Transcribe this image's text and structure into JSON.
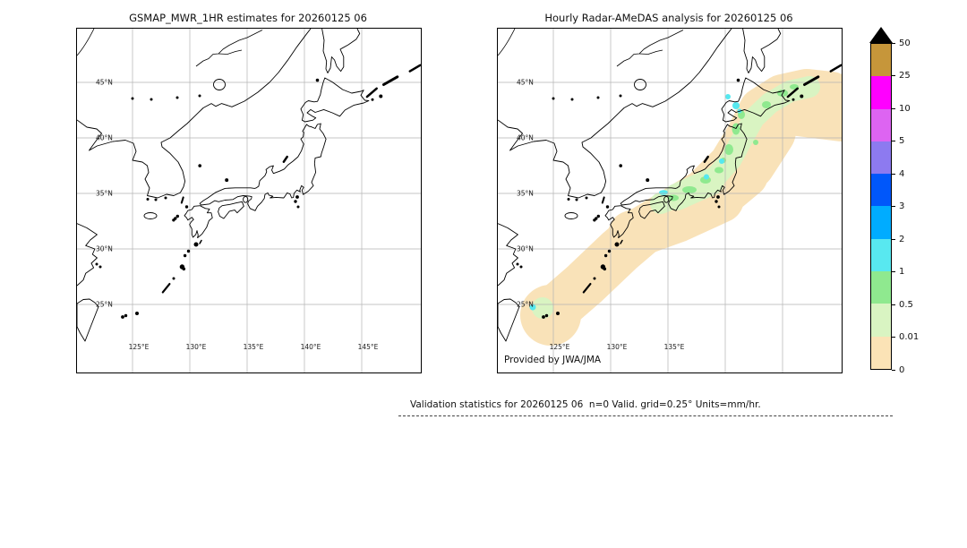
{
  "figure": {
    "background": "#ffffff"
  },
  "panels": [
    {
      "title": "GSMAP_MWR_1HR estimates for 20260125 06",
      "lat_labels": [
        "45°N",
        "40°N",
        "35°N",
        "30°N",
        "25°N"
      ],
      "lon_labels": [
        "125°E",
        "130°E",
        "135°E",
        "140°E",
        "145°E"
      ],
      "has_precip_overlay": false,
      "credit": ""
    },
    {
      "title": "Hourly Radar-AMeDAS analysis for 20260125 06",
      "lat_labels": [
        "45°N",
        "40°N",
        "35°N",
        "30°N",
        "25°N"
      ],
      "lon_labels": [
        "125°E",
        "130°E",
        "135°E"
      ],
      "has_precip_overlay": true,
      "credit": "Provided by JWA/JMA"
    }
  ],
  "colorbar": {
    "levels_top_to_bottom": [
      "50",
      "25",
      "10",
      "5",
      "4",
      "3",
      "2",
      "1",
      "0.5",
      "0.01",
      "0"
    ],
    "segment_colors_top_to_bottom": [
      "#c6963a",
      "#ff00ff",
      "#dd64f2",
      "#8d7af0",
      "#0057fa",
      "#00acff",
      "#58e8f0",
      "#8fe98f",
      "#d9f4c2",
      "#fbe3b6"
    ],
    "overflow_color": "#000000"
  },
  "caption": "Validation statistics for 20260125 06  n=0 Valid. grid=0.25° Units=mm/hr.",
  "chart_data": [
    {
      "type": "heatmap",
      "title": "GSMAP_MWR_1HR estimates for 20260125 06",
      "x_ticks": [
        "125°E",
        "130°E",
        "135°E",
        "140°E",
        "145°E"
      ],
      "y_ticks": [
        "45°N",
        "40°N",
        "35°N",
        "30°N",
        "25°N"
      ],
      "lon_range_deg_e": [
        120,
        150
      ],
      "lat_range_deg_n": [
        19,
        50
      ],
      "grid": true,
      "values": "no precipitation plotted (n=0 valid grid points)"
    },
    {
      "type": "heatmap",
      "title": "Hourly Radar-AMeDAS analysis for 20260125 06",
      "x_ticks": [
        "125°E",
        "130°E",
        "135°E"
      ],
      "y_ticks": [
        "45°N",
        "40°N",
        "35°N",
        "30°N",
        "25°N"
      ],
      "lon_range_deg_e": [
        120,
        150
      ],
      "lat_range_deg_n": [
        19,
        50
      ],
      "grid": true,
      "legend_levels_mm_per_hr": [
        0,
        0.01,
        0.5,
        1,
        2,
        3,
        4,
        5,
        10,
        25,
        50
      ],
      "legend_position": "right",
      "regions": [
        {
          "area": "Okinawa / southern Ryukyu blob near 25N 125E",
          "intensity_mm_hr": "0-1 with small 1-2 spot"
        },
        {
          "area": "Ryukyu island chain band toward Kyushu",
          "intensity_mm_hr": "0-0.01 (light rain fringe)"
        },
        {
          "area": "Kyushu, Shikoku, Seto area",
          "intensity_mm_hr": "0.01-1"
        },
        {
          "area": "San-in coast of western Honshu",
          "intensity_mm_hr": "0.5-2 (cyan spot ~35N 133E)"
        },
        {
          "area": "central Honshu, Tohoku along Sea of Japan",
          "intensity_mm_hr": "0.01-2 with cyan 1-2 spots"
        },
        {
          "area": "Hokkaido into Kuril Islands",
          "intensity_mm_hr": "0.01-2, peach fringe to NE corner"
        }
      ]
    }
  ]
}
